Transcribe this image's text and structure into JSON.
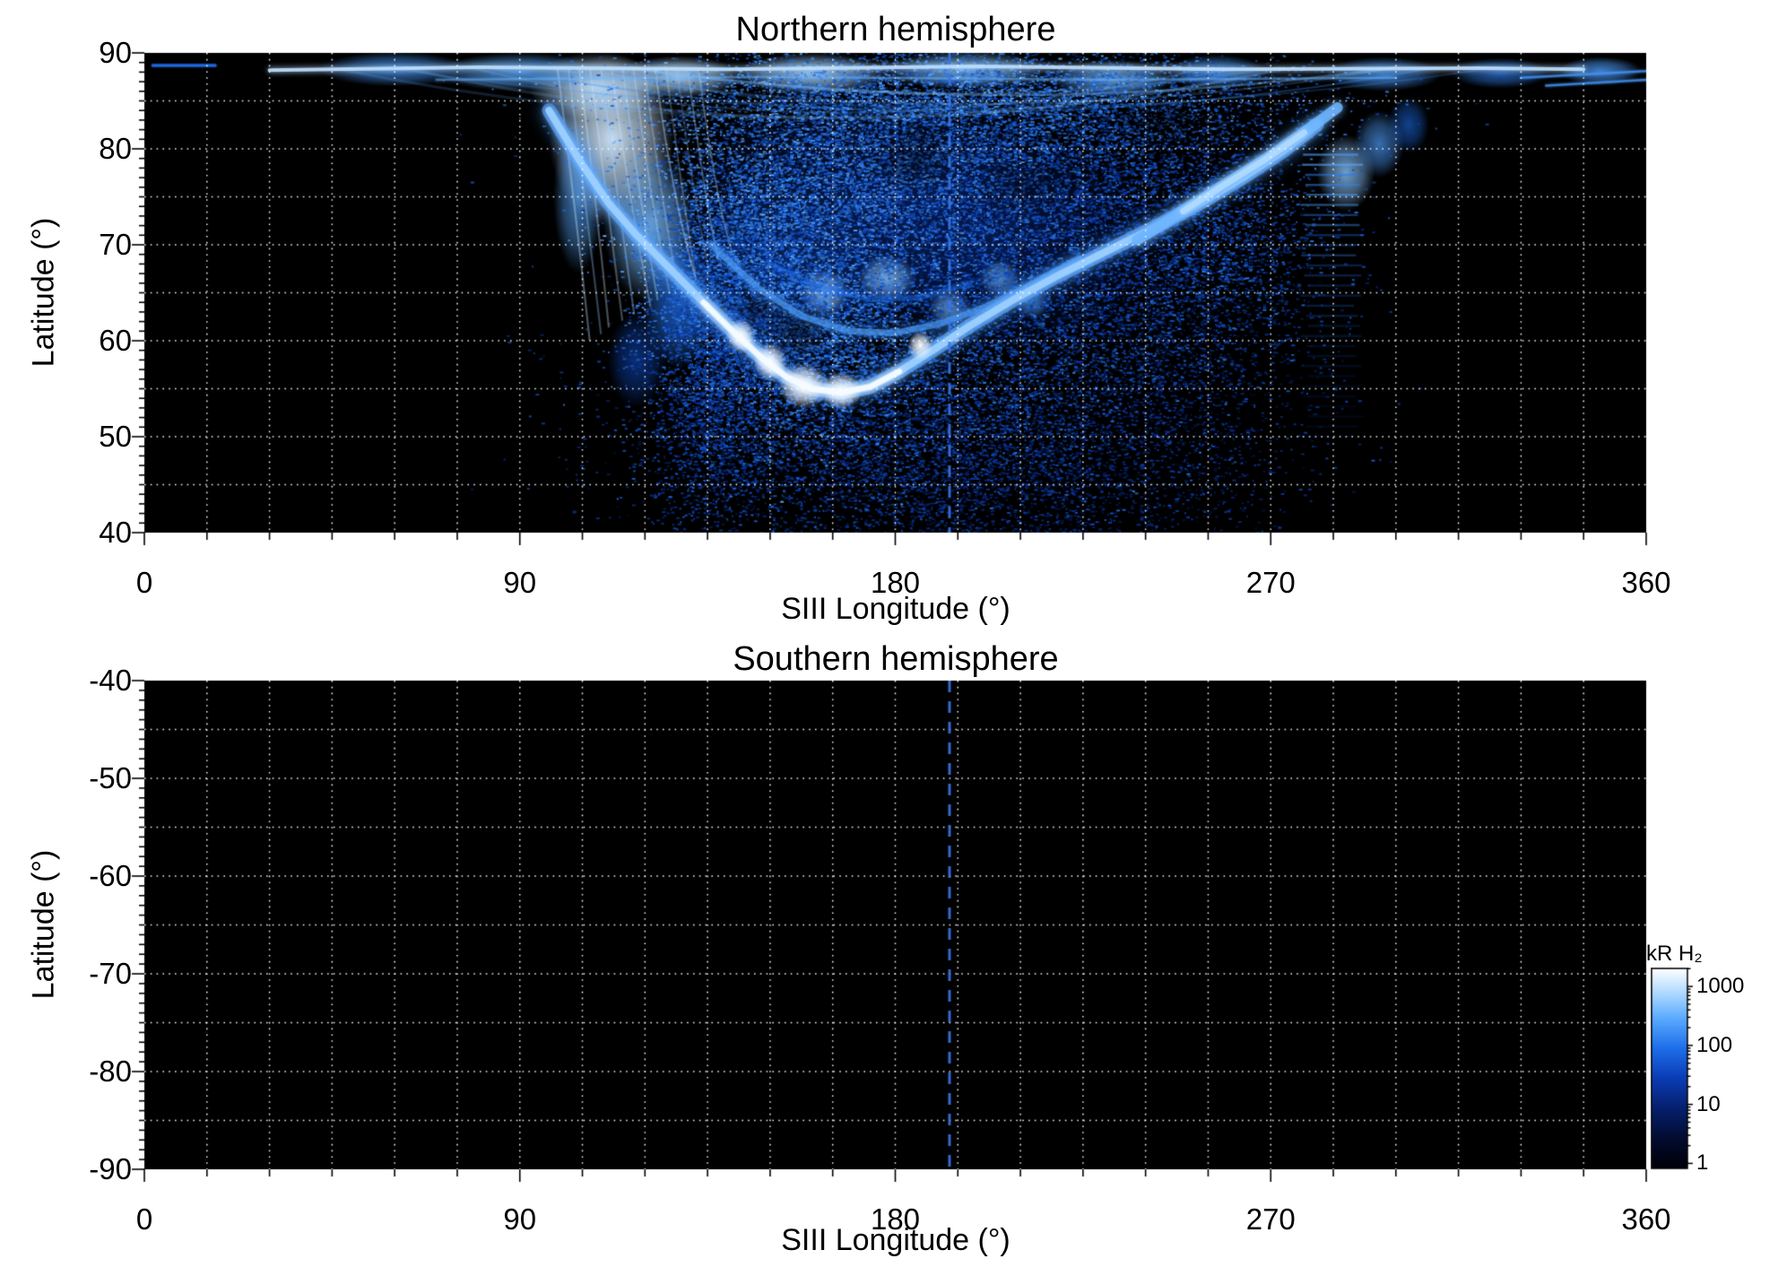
{
  "figure": {
    "background_color": "#ffffff",
    "panels": {
      "north": {
        "title": "Northern hemisphere",
        "xlabel": "SIII Longitude (°)",
        "ylabel": "Latitude (°)",
        "x_ticks": [
          "0",
          "90",
          "180",
          "270",
          "360"
        ],
        "y_ticks": [
          "90",
          "80",
          "70",
          "60",
          "50",
          "40"
        ]
      },
      "south": {
        "title": "Southern hemisphere",
        "xlabel": "SIII Longitude (°)",
        "ylabel": "Latitude (°)",
        "x_ticks": [
          "0",
          "90",
          "180",
          "270",
          "360"
        ],
        "y_ticks": [
          "-40",
          "-50",
          "-60",
          "-70",
          "-80",
          "-90"
        ]
      }
    },
    "colorbar": {
      "label": "kR H₂",
      "tick_labels": [
        "1000",
        "100",
        "10",
        "1"
      ]
    }
  },
  "chart_data": {
    "type": "heatmap",
    "panels": [
      {
        "id": "north",
        "title": "Northern hemisphere",
        "xlabel": "SIII Longitude (°)",
        "ylabel": "Latitude (°)",
        "xlim": [
          0,
          360
        ],
        "ylim": [
          40,
          90
        ],
        "x_major_ticks": [
          0,
          90,
          180,
          270,
          360
        ],
        "y_major_ticks": [
          90,
          80,
          70,
          60,
          50,
          40
        ],
        "x_minor_tick_spacing_deg": 15,
        "y_minor_tick_spacing_deg": 1,
        "grid": {
          "x_spacing_deg": 15,
          "y_spacing_deg": 5,
          "style": "dotted",
          "color": "#ffffff"
        },
        "background": "#000000",
        "reference_longitude_deg": 193,
        "reference_line": {
          "style": "dashed",
          "color": "#3a76e8"
        },
        "content": "UV auroral H2 emission map: bright main auroral oval dipping to ~54° latitude near 160° longitude, bright emission column near 100–135° longitude, diffuse speckled emission between ~95° and ~305° longitude, thin bright polar band near 88° latitude"
      },
      {
        "id": "south",
        "title": "Southern hemisphere",
        "xlabel": "SIII Longitude (°)",
        "ylabel": "Latitude (°)",
        "xlim": [
          0,
          360
        ],
        "ylim": [
          -90,
          -40
        ],
        "x_major_ticks": [
          0,
          90,
          180,
          270,
          360
        ],
        "y_major_ticks": [
          -40,
          -50,
          -60,
          -70,
          -80,
          -90
        ],
        "x_minor_tick_spacing_deg": 15,
        "y_minor_tick_spacing_deg": 1,
        "grid": {
          "x_spacing_deg": 15,
          "y_spacing_deg": 5,
          "style": "dotted",
          "color": "#ffffff"
        },
        "background": "#000000",
        "reference_longitude_deg": 193,
        "reference_line": {
          "style": "dashed",
          "color": "#3a76e8"
        },
        "content": "no emission data (empty black panel)"
      }
    ],
    "colorbar": {
      "label": "kR H₂",
      "scale": "log",
      "ticks": [
        1000,
        100,
        10,
        1
      ],
      "range_approx": [
        1,
        1000
      ],
      "colormap_stops": [
        {
          "pos": 0.0,
          "color": "#000008"
        },
        {
          "pos": 0.15,
          "color": "#030c30"
        },
        {
          "pos": 0.3,
          "color": "#06206e"
        },
        {
          "pos": 0.45,
          "color": "#0a3cb4"
        },
        {
          "pos": 0.6,
          "color": "#1e6eeb"
        },
        {
          "pos": 0.75,
          "color": "#5aaaff"
        },
        {
          "pos": 0.87,
          "color": "#aad7ff"
        },
        {
          "pos": 1.0,
          "color": "#ffffff"
        }
      ]
    },
    "aurora_north": {
      "main_oval": [
        [
          97,
          84
        ],
        [
          104,
          79
        ],
        [
          111,
          74.5
        ],
        [
          118,
          71
        ],
        [
          126,
          67.5
        ],
        [
          134,
          64
        ],
        [
          141,
          61
        ],
        [
          148,
          58.2
        ],
        [
          154,
          56.2
        ],
        [
          160,
          55
        ],
        [
          167,
          54.6
        ],
        [
          174,
          55.2
        ],
        [
          181,
          56.8
        ],
        [
          189,
          59
        ],
        [
          198,
          61.6
        ],
        [
          208,
          64.2
        ],
        [
          219,
          66.8
        ],
        [
          231,
          69.4
        ],
        [
          243,
          72
        ],
        [
          254,
          74.6
        ],
        [
          264,
          77.2
        ],
        [
          273,
          79.8
        ],
        [
          281,
          82.5
        ]
      ],
      "bright_core_lon_range": [
        134,
        186
      ],
      "secondary_arc": [
        [
          136,
          70
        ],
        [
          147,
          65.5
        ],
        [
          158,
          62.5
        ],
        [
          169,
          61
        ],
        [
          180,
          60.8
        ],
        [
          191,
          61.8
        ],
        [
          202,
          63.6
        ],
        [
          213,
          66
        ],
        [
          224,
          68.6
        ]
      ],
      "inner_arc": [
        [
          150,
          68
        ],
        [
          162,
          65.5
        ],
        [
          174,
          64.3
        ],
        [
          186,
          64.5
        ],
        [
          198,
          66
        ]
      ],
      "right_arc": [
        [
          238,
          70.5
        ],
        [
          249,
          73.5
        ],
        [
          259,
          76.3
        ],
        [
          269,
          79
        ],
        [
          278,
          81.7
        ],
        [
          286,
          84.3
        ]
      ],
      "polar_band_lat": 88.4,
      "polar_band_lon_range": [
        30,
        345
      ],
      "left_edge_dash": {
        "lat": 88.7,
        "lon_range": [
          2,
          17
        ]
      },
      "right_edge_wisps": [
        [
          330,
          87.4,
          360,
          88.1
        ],
        [
          336,
          86.6,
          360,
          87.2
        ]
      ],
      "right_column": {
        "lon_range": [
          277,
          292
        ],
        "lat_range": [
          50,
          80
        ]
      },
      "blobs": [
        [
          112,
          81,
          15,
          9,
          0.93,
          0.95
        ],
        [
          108,
          86.5,
          16,
          3.5,
          0.9,
          0.9
        ],
        [
          121,
          72,
          11,
          8,
          0.8,
          0.85
        ],
        [
          128,
          64,
          9,
          7,
          0.62,
          0.75
        ],
        [
          118,
          58,
          7,
          5,
          0.5,
          0.6
        ],
        [
          104,
          75,
          6,
          8,
          0.75,
          0.7
        ],
        [
          175,
          74,
          50,
          13,
          0.42,
          0.4
        ],
        [
          152,
          66,
          28,
          11,
          0.5,
          0.35
        ],
        [
          205,
          70,
          40,
          12,
          0.38,
          0.35
        ],
        [
          163,
          65,
          6,
          2.5,
          0.85,
          0.8
        ],
        [
          178,
          66.5,
          7,
          2.5,
          0.82,
          0.8
        ],
        [
          193,
          63.5,
          5,
          2,
          0.8,
          0.7
        ],
        [
          205,
          66.5,
          5,
          2,
          0.78,
          0.7
        ],
        [
          213,
          64,
          4,
          1.8,
          0.75,
          0.6
        ],
        [
          160,
          87.8,
          18,
          2.2,
          0.85,
          0.9
        ],
        [
          197,
          88.2,
          20,
          2,
          0.8,
          0.85
        ],
        [
          232,
          87.3,
          15,
          2,
          0.78,
          0.8
        ],
        [
          257,
          88,
          12,
          1.8,
          0.7,
          0.8
        ],
        [
          128,
          87.5,
          15,
          2.2,
          0.88,
          0.9
        ],
        [
          90,
          88,
          20,
          2,
          0.75,
          0.8
        ],
        [
          60,
          88.3,
          18,
          1.8,
          0.7,
          0.75
        ],
        [
          297,
          87.8,
          14,
          1.8,
          0.7,
          0.75
        ],
        [
          325,
          87.9,
          12,
          1.6,
          0.65,
          0.7
        ],
        [
          349,
          88.1,
          10,
          1.5,
          0.72,
          0.8
        ],
        [
          288,
          77.5,
          7,
          4,
          0.82,
          0.8
        ],
        [
          296,
          80.5,
          6,
          3.5,
          0.72,
          0.7
        ],
        [
          303,
          82.5,
          5,
          3,
          0.6,
          0.6
        ]
      ],
      "dark_patches": [
        [
          157,
          61,
          9,
          3,
          0.55
        ],
        [
          147,
          63.5,
          6,
          2.5,
          0.45
        ],
        [
          185,
          79,
          12,
          4,
          0.4
        ],
        [
          210,
          76,
          10,
          3.5,
          0.35
        ],
        [
          244,
          83,
          14,
          3,
          0.4
        ]
      ],
      "bright_spots": [
        [
          158,
          55.3,
          6,
          2.4
        ],
        [
          150,
          57.8,
          4,
          2
        ],
        [
          167,
          54.8,
          5,
          2
        ],
        [
          143,
          60.5,
          3.5,
          1.8
        ],
        [
          186,
          59.5,
          3,
          1.5
        ]
      ],
      "speckle_fields": [
        [
          150,
          73,
          16,
          8,
          5000,
          0.45,
          0.8
        ],
        [
          183,
          77,
          24,
          6.5,
          5500,
          0.42,
          0.75
        ],
        [
          204,
          63,
          24,
          9,
          5000,
          0.35,
          0.7
        ],
        [
          172,
          51,
          26,
          6.5,
          4200,
          0.3,
          0.62
        ],
        [
          243,
          58,
          18,
          10,
          2600,
          0.25,
          0.55
        ],
        [
          222,
          84,
          30,
          3.5,
          2800,
          0.4,
          0.72
        ],
        [
          160,
          60,
          13,
          5.5,
          2600,
          0.45,
          0.78
        ],
        [
          138,
          64,
          9,
          6.5,
          2400,
          0.4,
          0.7
        ],
        [
          137,
          54,
          8,
          7,
          1800,
          0.33,
          0.6
        ],
        [
          256,
          71,
          13,
          6,
          2000,
          0.35,
          0.66
        ],
        [
          205,
          45,
          24,
          4.5,
          1600,
          0.25,
          0.5
        ],
        [
          182,
          86,
          35,
          2.5,
          2200,
          0.45,
          0.8
        ],
        [
          230,
          75,
          14,
          6,
          1800,
          0.3,
          0.6
        ]
      ]
    }
  }
}
